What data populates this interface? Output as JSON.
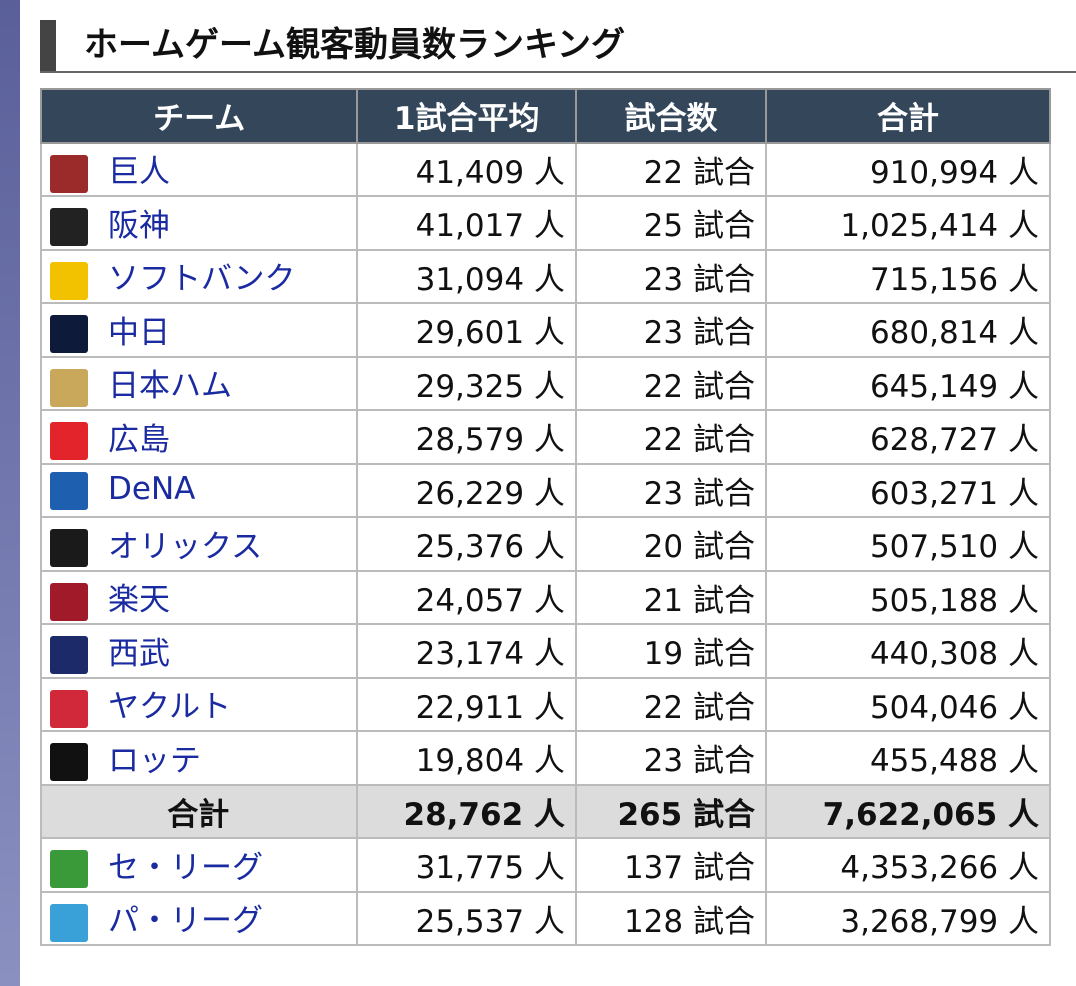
{
  "header": {
    "title": "ホームゲーム観客動員数ランキング"
  },
  "table": {
    "header": [
      "チーム",
      "1試合平均",
      "試合数",
      "合計"
    ],
    "rows": [
      [
        "巨人",
        "41,409 人",
        "22 試合",
        "910,994 人"
      ],
      [
        "阪神",
        "41,017 人",
        "25 試合",
        "1,025,414 人"
      ],
      [
        "ソフトバンク",
        "31,094 人",
        "23 試合",
        "715,156 人"
      ],
      [
        "中日",
        "29,601 人",
        "23 試合",
        "680,814 人"
      ],
      [
        "日本ハム",
        "29,325 人",
        "22 試合",
        "645,149 人"
      ],
      [
        "広島",
        "28,579 人",
        "22 試合",
        "628,727 人"
      ],
      [
        "DeNA",
        "26,229 人",
        "23 試合",
        "603,271 人"
      ],
      [
        "オリックス",
        "25,376 人",
        "20 試合",
        "507,510 人"
      ],
      [
        "楽天",
        "24,057 人",
        "21 試合",
        "505,188 人"
      ],
      [
        "西武",
        "23,174 人",
        "19 試合",
        "440,308 人"
      ],
      [
        "ヤクルト",
        "22,911 人",
        "22 試合",
        "504,046 人"
      ],
      [
        "ロッテ",
        "19,804 人",
        "23 試合",
        "455,488 人"
      ],
      [
        "合計",
        "28,762 人",
        "265 試合",
        "7,622,065 人"
      ],
      [
        "セ・リーグ",
        "31,775 人",
        "137 試合",
        "4,353,266 人"
      ],
      [
        "パ・リーグ",
        "25,537 人",
        "128 試合",
        "3,268,799 人"
      ]
    ]
  }
}
